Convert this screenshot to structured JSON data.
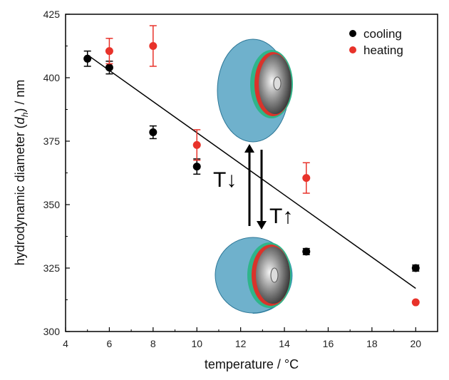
{
  "chart_data": {
    "type": "scatter",
    "xlabel": "temperature / °C",
    "ylabel_prefix": "hydrodynamic diameter (",
    "ylabel_symbol": "d",
    "ylabel_subscript": "h",
    "ylabel_suffix": ") / nm",
    "xlim": [
      4,
      21
    ],
    "ylim": [
      300,
      425
    ],
    "xticks": [
      "4",
      "6",
      "8",
      "10",
      "12",
      "14",
      "16",
      "18",
      "20"
    ],
    "yticks": [
      "300",
      "325",
      "350",
      "375",
      "400",
      "425"
    ],
    "grid": false,
    "legend_position": "top-right",
    "series": [
      {
        "name": "cooling",
        "color": "#000000",
        "points": [
          {
            "x": 5,
            "y": 407.5,
            "err": 3
          },
          {
            "x": 6,
            "y": 404,
            "err": 2.5
          },
          {
            "x": 8,
            "y": 378.5,
            "err": 2.5
          },
          {
            "x": 10,
            "y": 365,
            "err": 3
          },
          {
            "x": 15,
            "y": 331.5,
            "err": 1.2
          },
          {
            "x": 20,
            "y": 325,
            "err": 1.2
          }
        ]
      },
      {
        "name": "heating",
        "color": "#e8322a",
        "points": [
          {
            "x": 6,
            "y": 410.5,
            "err": 5
          },
          {
            "x": 8,
            "y": 412.5,
            "err": 8
          },
          {
            "x": 10,
            "y": 373.5,
            "err": 6
          },
          {
            "x": 15,
            "y": 360.5,
            "err": 6
          },
          {
            "x": 20,
            "y": 311.5,
            "err": 0
          }
        ]
      }
    ],
    "fit_line": {
      "x1": 5,
      "y1": 409,
      "x2": 20,
      "y2": 317
    },
    "annotations": {
      "cooling_arrow": "T↓",
      "heating_arrow": "T↑"
    }
  }
}
